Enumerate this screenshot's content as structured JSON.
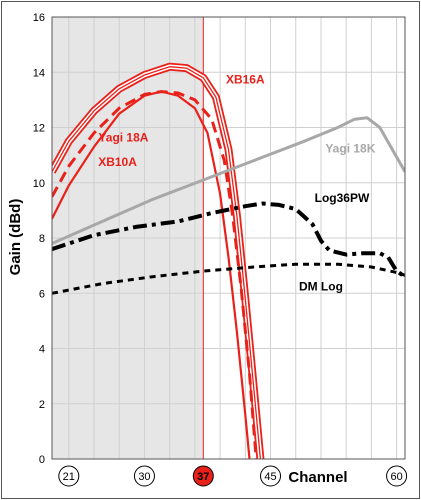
{
  "chart_data": {
    "type": "line",
    "ylabel": "Gain (dBd)",
    "xlabel": "Channel",
    "ylim": [
      0,
      16
    ],
    "xlim": [
      19,
      61
    ],
    "y_ticks": [
      "0",
      "2",
      "4",
      "6",
      "8",
      "10",
      "12",
      "14",
      "16"
    ],
    "x_ticks": [
      {
        "value": 21,
        "label": "21",
        "highlight": false
      },
      {
        "value": 30,
        "label": "30",
        "highlight": false
      },
      {
        "value": 37,
        "label": "37",
        "highlight": true
      },
      {
        "value": 45,
        "label": "45",
        "highlight": false
      },
      {
        "value": 60,
        "label": "60",
        "highlight": false
      }
    ],
    "x_gridlines": [
      21,
      24,
      27,
      30,
      33,
      36,
      39,
      42,
      45,
      48,
      51,
      54,
      57,
      60
    ],
    "grid": true,
    "shaded_range": [
      19,
      37
    ],
    "marker_channel": 37,
    "colors": {
      "red": "#e8211a",
      "gray": "#a8a8a8",
      "black": "#000000",
      "shade": "#e6e6e6"
    },
    "series": [
      {
        "name": "XB16A",
        "color": "#e8211a",
        "style": "triple",
        "points": [
          [
            19,
            10.4
          ],
          [
            21,
            11.5
          ],
          [
            24,
            12.6
          ],
          [
            27,
            13.4
          ],
          [
            30,
            13.9
          ],
          [
            33,
            14.2
          ],
          [
            35,
            14.15
          ],
          [
            37,
            13.8
          ],
          [
            38.5,
            13.1
          ],
          [
            40,
            11.2
          ],
          [
            41,
            8.8
          ],
          [
            42,
            5.8
          ],
          [
            43,
            2.6
          ],
          [
            43.8,
            0
          ]
        ]
      },
      {
        "name": "Yagi 18A",
        "color": "#e8211a",
        "style": "dashed",
        "points": [
          [
            19,
            9.5
          ],
          [
            21,
            10.6
          ],
          [
            24,
            11.8
          ],
          [
            27,
            12.7
          ],
          [
            30,
            13.2
          ],
          [
            32,
            13.3
          ],
          [
            34,
            13.25
          ],
          [
            36,
            13.0
          ],
          [
            38,
            12.3
          ],
          [
            39.5,
            10.8
          ],
          [
            40.5,
            8.8
          ],
          [
            41.5,
            6.2
          ],
          [
            42.5,
            3.1
          ],
          [
            43.3,
            0
          ]
        ]
      },
      {
        "name": "XB10A",
        "color": "#e8211a",
        "style": "solid",
        "points": [
          [
            19,
            8.7
          ],
          [
            21,
            9.9
          ],
          [
            24,
            11.3
          ],
          [
            27,
            12.5
          ],
          [
            30,
            13.15
          ],
          [
            32,
            13.3
          ],
          [
            34,
            13.15
          ],
          [
            36,
            12.7
          ],
          [
            37.5,
            11.8
          ],
          [
            39,
            9.6
          ],
          [
            40,
            7.3
          ],
          [
            41,
            4.6
          ],
          [
            42,
            1.6
          ],
          [
            42.5,
            0
          ]
        ]
      },
      {
        "name": "Yagi 18K",
        "color": "#a8a8a8",
        "style": "gray",
        "points": [
          [
            19,
            7.8
          ],
          [
            25,
            8.6
          ],
          [
            31,
            9.4
          ],
          [
            37,
            10.1
          ],
          [
            43,
            10.8
          ],
          [
            49,
            11.5
          ],
          [
            53,
            12.0
          ],
          [
            55,
            12.3
          ],
          [
            56.5,
            12.35
          ],
          [
            58,
            12.0
          ],
          [
            59.5,
            11.2
          ],
          [
            61,
            10.4
          ]
        ]
      },
      {
        "name": "Log36PW",
        "color": "#000000",
        "style": "dashdot",
        "points": [
          [
            19,
            7.6
          ],
          [
            24,
            8.1
          ],
          [
            29,
            8.4
          ],
          [
            34,
            8.6
          ],
          [
            38,
            8.9
          ],
          [
            42,
            9.15
          ],
          [
            44,
            9.25
          ],
          [
            46,
            9.2
          ],
          [
            48,
            9.05
          ],
          [
            50,
            8.5
          ],
          [
            51,
            7.9
          ],
          [
            52,
            7.55
          ],
          [
            54,
            7.4
          ],
          [
            56,
            7.45
          ],
          [
            58,
            7.45
          ],
          [
            59,
            7.3
          ],
          [
            60,
            6.8
          ],
          [
            61,
            6.6
          ]
        ]
      },
      {
        "name": "DM Log",
        "color": "#000000",
        "style": "dotted",
        "points": [
          [
            19,
            6.0
          ],
          [
            25,
            6.35
          ],
          [
            31,
            6.6
          ],
          [
            37,
            6.8
          ],
          [
            43,
            6.95
          ],
          [
            48,
            7.05
          ],
          [
            53,
            7.05
          ],
          [
            57,
            6.95
          ],
          [
            60,
            6.75
          ],
          [
            61,
            6.65
          ]
        ]
      }
    ],
    "annotations": [
      {
        "text": "XB16A",
        "color": "#e8211a",
        "x": 42,
        "y": 13.6,
        "anchor": "middle"
      },
      {
        "text": "Yagi 18A",
        "color": "#e8211a",
        "x": 27.5,
        "y": 11.5,
        "anchor": "middle"
      },
      {
        "text": "XB10A",
        "color": "#e8211a",
        "x": 26.8,
        "y": 10.6,
        "anchor": "middle"
      },
      {
        "text": "Yagi 18K",
        "color": "#a8a8a8",
        "x": 54.5,
        "y": 11.1,
        "anchor": "middle"
      },
      {
        "text": "Log36PW",
        "color": "#000000",
        "x": 53.5,
        "y": 9.3,
        "anchor": "middle"
      },
      {
        "text": "DM Log",
        "color": "#000000",
        "x": 51,
        "y": 6.1,
        "anchor": "middle"
      }
    ]
  }
}
